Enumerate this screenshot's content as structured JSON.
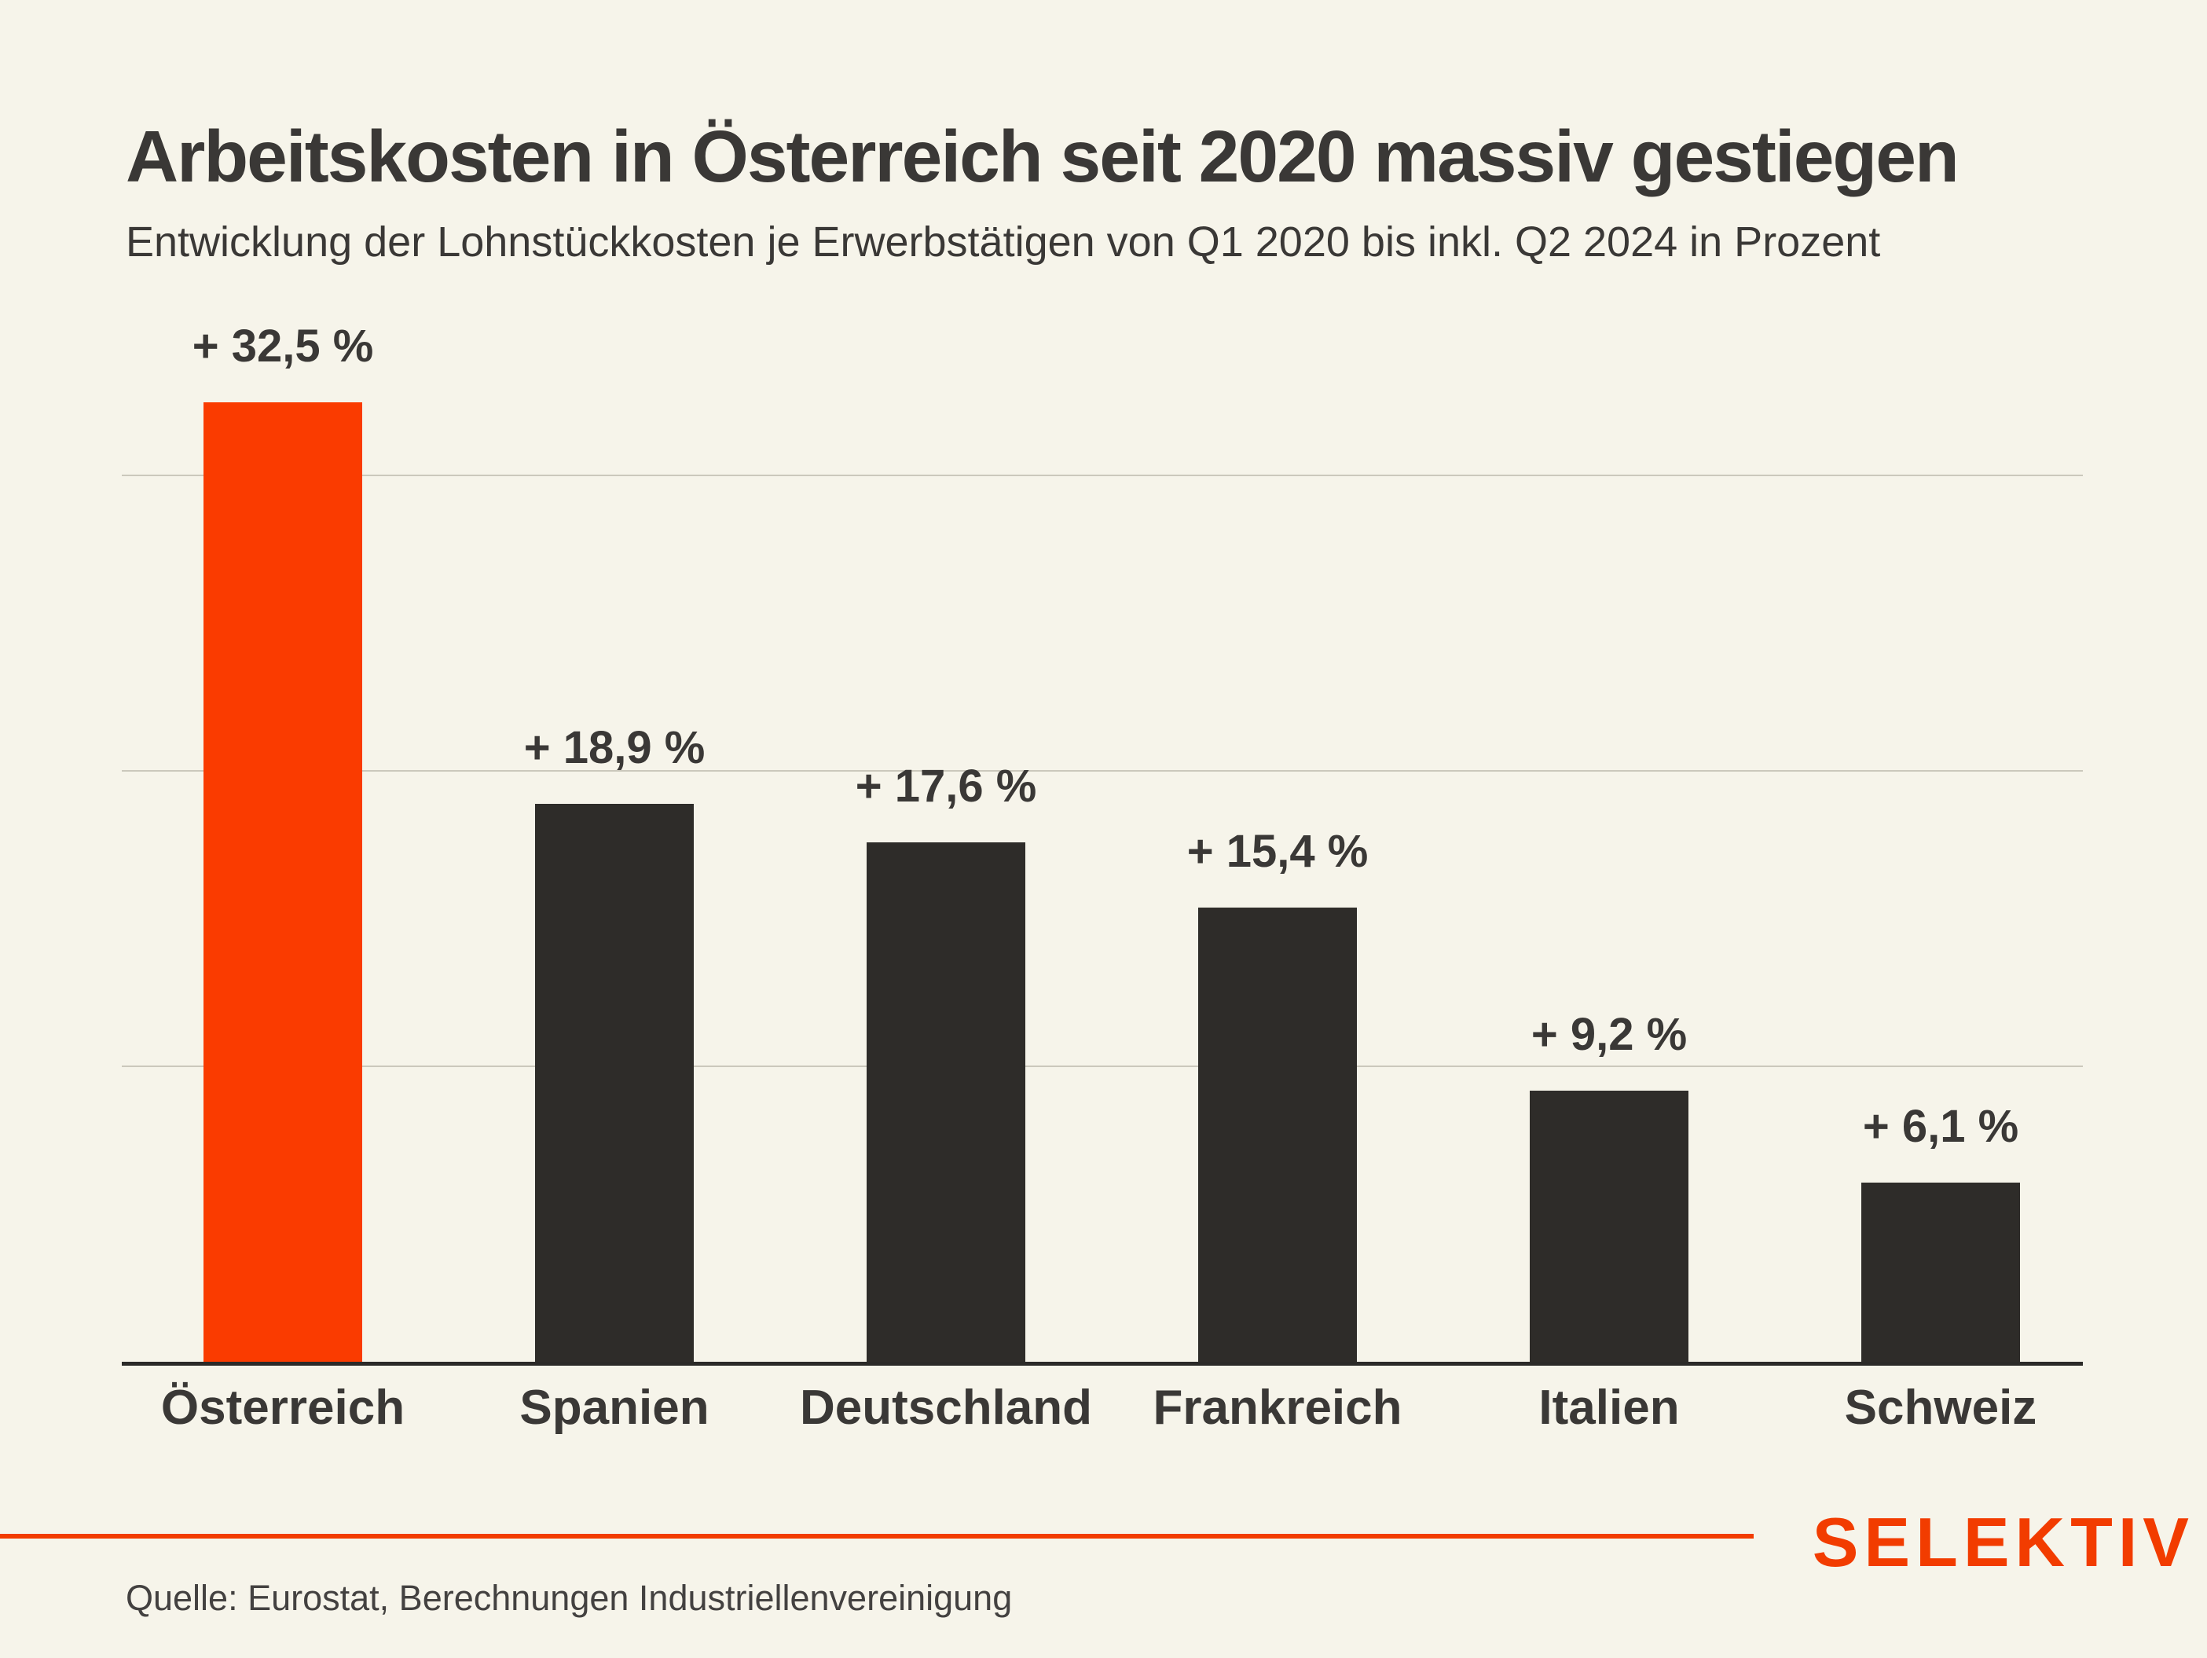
{
  "header": {
    "title": "Arbeitskosten in Österreich seit 2020 massiv gestiegen",
    "subtitle": "Entwicklung der Lohnstückkosten je Erwerbstätigen von Q1 2020 bis inkl. Q2 2024 in Prozent"
  },
  "footer": {
    "source": "Quelle: Eurostat, Berechnungen Industriellenvereinigung",
    "brand_name": "SELEKTIV"
  },
  "colors": {
    "background": "#F6F4EA",
    "text": "#3A3836",
    "gridline": "#CBC8BC",
    "axis_line": "#2B2A28",
    "bar_default": "#2E2C29",
    "bar_highlight": "#FA3B00",
    "brand_accent": "#F23C00"
  },
  "chart_data": {
    "type": "bar",
    "title": "Arbeitskosten in Österreich seit 2020 massiv gestiegen",
    "subtitle": "Entwicklung der Lohnstückkosten je Erwerbstätigen von Q1 2020 bis inkl. Q2 2024 in Prozent",
    "xlabel": "",
    "ylabel": "",
    "unit": "Prozent",
    "categories": [
      "Österreich",
      "Spanien",
      "Deutschland",
      "Frankreich",
      "Italien",
      "Schweiz"
    ],
    "values": [
      32.5,
      18.9,
      17.6,
      15.4,
      9.2,
      6.1
    ],
    "value_labels": [
      "+ 32,5 %",
      "+ 18,9 %",
      "+ 17,6 %",
      "+ 15,4 %",
      "+ 9,2 %",
      "+ 6,1 %"
    ],
    "highlight_index": 0,
    "ylim": [
      0,
      36
    ],
    "gridlines": [
      10,
      20,
      30
    ],
    "grid_on": true,
    "legend": "none",
    "y_tick_labels_visible": false
  }
}
